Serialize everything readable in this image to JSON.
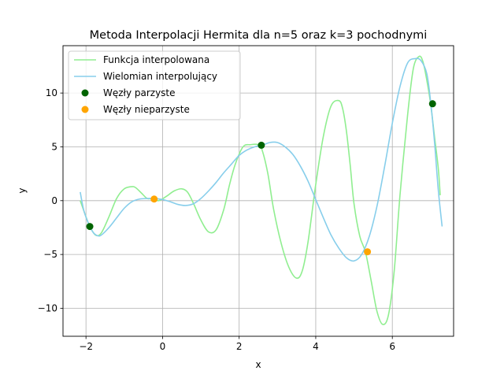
{
  "chart_data": {
    "type": "line",
    "title": "Metoda Interpolacji Hermita dla n=5 oraz k=3 pochodnymi",
    "xlabel": "x",
    "ylabel": "y",
    "xlim": [
      -2.6,
      7.6
    ],
    "ylim": [
      -12.6,
      14.4
    ],
    "xticks": [
      -2,
      0,
      2,
      4,
      6
    ],
    "xtick_labels": [
      "−2",
      "0",
      "2",
      "4",
      "6"
    ],
    "yticks": [
      -10,
      -5,
      0,
      5,
      10
    ],
    "ytick_labels": [
      "−10",
      "−5",
      "0",
      "5",
      "10"
    ],
    "grid": true,
    "legend_position": "top-left",
    "series": [
      {
        "name": "Funkcja interpolowana",
        "kind": "line",
        "color": "#90ee90",
        "x": [
          -2.15,
          -2.0,
          -1.9,
          -1.75,
          -1.6,
          -1.4,
          -1.2,
          -1.0,
          -0.8,
          -0.7,
          -0.55,
          -0.4,
          -0.25,
          -0.1,
          0.1,
          0.3,
          0.5,
          0.65,
          0.8,
          1.0,
          1.2,
          1.4,
          1.6,
          1.75,
          1.9,
          2.1,
          2.3,
          2.5,
          2.6,
          2.75,
          2.9,
          3.1,
          3.3,
          3.5,
          3.65,
          3.8,
          4.0,
          4.2,
          4.4,
          4.6,
          4.7,
          4.8,
          4.9,
          5.0,
          5.15,
          5.3,
          5.45,
          5.6,
          5.75,
          5.9,
          6.05,
          6.2,
          6.4,
          6.55,
          6.7,
          6.8,
          6.9,
          7.0,
          7.1,
          7.2,
          7.25
        ],
        "y": [
          0.0,
          -1.5,
          -2.4,
          -3.2,
          -3.0,
          -1.5,
          0.2,
          1.1,
          1.3,
          1.2,
          0.7,
          0.2,
          0.2,
          0.0,
          0.4,
          0.9,
          1.1,
          0.8,
          -0.2,
          -1.8,
          -2.9,
          -2.7,
          -0.8,
          1.5,
          3.4,
          5.0,
          5.2,
          5.2,
          4.7,
          2.5,
          -0.8,
          -4.0,
          -6.2,
          -7.2,
          -6.5,
          -3.8,
          1.5,
          6.0,
          8.8,
          9.3,
          8.6,
          6.5,
          3.3,
          -0.3,
          -3.3,
          -4.8,
          -7.5,
          -10.3,
          -11.5,
          -10.6,
          -6.5,
          0.5,
          8.0,
          12.3,
          13.4,
          12.9,
          11.2,
          9.0,
          6.0,
          3.0,
          0.5
        ]
      },
      {
        "name": "Wielomian interpolujący",
        "kind": "line",
        "color": "#87ceeb",
        "x": [
          -2.15,
          -2.05,
          -1.9,
          -1.8,
          -1.7,
          -1.6,
          -1.4,
          -1.2,
          -1.0,
          -0.8,
          -0.6,
          -0.4,
          -0.2,
          0.0,
          0.2,
          0.4,
          0.6,
          0.8,
          1.0,
          1.2,
          1.4,
          1.6,
          1.8,
          2.0,
          2.2,
          2.4,
          2.6,
          2.8,
          3.0,
          3.2,
          3.4,
          3.6,
          3.8,
          4.0,
          4.2,
          4.4,
          4.6,
          4.8,
          5.0,
          5.2,
          5.4,
          5.6,
          5.8,
          6.0,
          6.2,
          6.4,
          6.6,
          6.75,
          6.9,
          7.0,
          7.1,
          7.2,
          7.3
        ],
        "y": [
          0.8,
          -1.0,
          -2.4,
          -3.0,
          -3.25,
          -3.2,
          -2.5,
          -1.6,
          -0.7,
          -0.1,
          0.15,
          0.2,
          0.2,
          0.1,
          -0.1,
          -0.35,
          -0.45,
          -0.3,
          0.2,
          0.9,
          1.7,
          2.6,
          3.4,
          4.2,
          4.7,
          5.0,
          5.15,
          5.4,
          5.4,
          5.0,
          4.3,
          3.2,
          1.8,
          0.1,
          -1.6,
          -3.2,
          -4.4,
          -5.3,
          -5.6,
          -5.0,
          -3.3,
          -0.5,
          3.2,
          7.2,
          10.6,
          12.8,
          13.2,
          13.0,
          11.8,
          9.2,
          5.5,
          1.0,
          -2.4
        ]
      },
      {
        "name": "Węzły parzyste",
        "kind": "scatter",
        "color": "#006400",
        "x": [
          -1.9,
          2.58,
          7.05
        ],
        "y": [
          -2.4,
          5.15,
          9.0
        ]
      },
      {
        "name": "Węzły nieparzyste",
        "kind": "scatter",
        "color": "#ffa500",
        "x": [
          -0.22,
          5.35
        ],
        "y": [
          0.15,
          -4.75
        ]
      }
    ]
  }
}
